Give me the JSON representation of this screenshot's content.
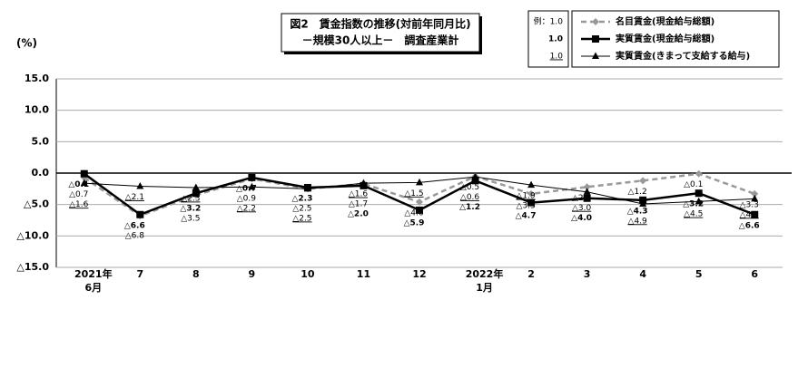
{
  "chart_data": {
    "type": "line",
    "title": "図2　賃金指数の推移(対前年同月比)",
    "subtitle": "－規模30人以上－　調査産業計",
    "y_unit": "(%)",
    "legend_format_example": [
      "例：1.0",
      "1.0",
      "1.0"
    ],
    "categories": [
      [
        "2021年",
        "6月"
      ],
      [
        "7"
      ],
      [
        "8"
      ],
      [
        "9"
      ],
      [
        "10"
      ],
      [
        "11"
      ],
      [
        "12"
      ],
      [
        "2022年",
        "1月"
      ],
      [
        "2"
      ],
      [
        "3"
      ],
      [
        "4"
      ],
      [
        "5"
      ],
      [
        "6"
      ]
    ],
    "ylim": [
      -15,
      15
    ],
    "yticks": [
      {
        "value": 15,
        "label": "15.0"
      },
      {
        "value": 10,
        "label": "10.0"
      },
      {
        "value": 5,
        "label": "5.0"
      },
      {
        "value": 0,
        "label": "0.0"
      },
      {
        "value": -5,
        "label": "△5.0"
      },
      {
        "value": -10,
        "label": "△10.0"
      },
      {
        "value": -15,
        "label": "△15.0"
      }
    ],
    "grid": true,
    "series": [
      {
        "name": "名目賃金(現金給与総額)",
        "color": "#999999",
        "dashed": true,
        "marker": "diamond",
        "width": 2.5,
        "label_style": "plain",
        "values": [
          -0.7,
          -6.8,
          -3.5,
          -0.9,
          -2.5,
          -1.7,
          -4.6,
          -0.5,
          -3.3,
          -2.2,
          -1.2,
          -0.1,
          -3.3
        ],
        "value_labels": [
          "△0.7",
          "△6.8",
          "△3.5",
          "△0.9",
          "△2.5",
          "△1.7",
          "△4.6",
          "△0.5",
          "△3.3",
          "△2.2",
          "△1.2",
          "△0.1",
          "△3.3"
        ]
      },
      {
        "name": "実質賃金(現金給与総額)",
        "color": "#000000",
        "dashed": false,
        "marker": "square",
        "width": 2.5,
        "label_style": "bold",
        "values": [
          -0.1,
          -6.6,
          -3.2,
          -0.7,
          -2.3,
          -2.0,
          -5.9,
          -1.2,
          -4.7,
          -4.0,
          -4.3,
          -3.2,
          -6.6
        ],
        "value_labels": [
          "△0.1",
          "△6.6",
          "△3.2",
          "△0.7",
          "△2.3",
          "△2.0",
          "△5.9",
          "△1.2",
          "△4.7",
          "△4.0",
          "△4.3",
          "△3.2",
          "△6.6"
        ]
      },
      {
        "name": "実質賃金(きまって支給する給与)",
        "color": "#000000",
        "dashed": false,
        "marker": "triangle",
        "width": 1,
        "label_style": "underline",
        "values": [
          -1.6,
          -2.1,
          -2.3,
          -2.2,
          -2.5,
          -1.6,
          -1.5,
          -0.6,
          -1.9,
          -3.0,
          -4.9,
          -4.5,
          -4.1
        ],
        "value_labels": [
          "△1.6",
          "△2.1",
          "△2.3",
          "△2.2",
          "△2.5",
          "△1.6",
          "△1.5",
          "△0.6",
          "△1.9",
          "△3.0",
          "△4.9",
          "△4.5",
          "△4.1"
        ]
      }
    ]
  }
}
